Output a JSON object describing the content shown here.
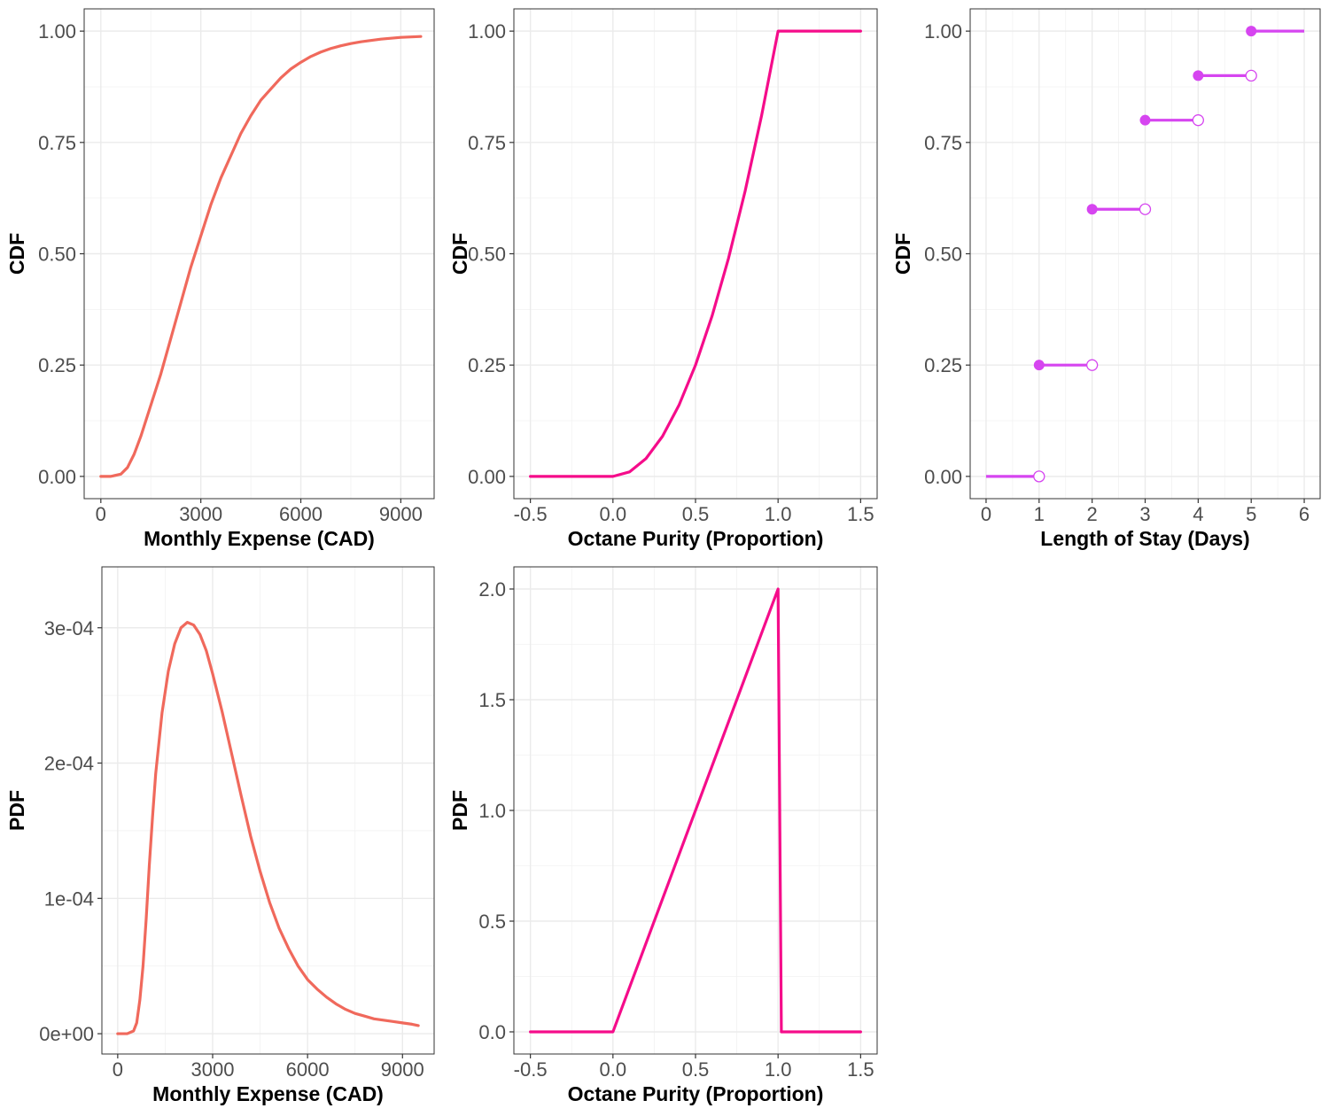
{
  "colors": {
    "gamma": "#F0695C",
    "triangular": "#F50C8A",
    "discrete": "#D645F0"
  },
  "chart_data": [
    {
      "id": "cdf-expense",
      "type": "line",
      "xlabel": "Monthly Expense (CAD)",
      "ylabel": "CDF",
      "xlim": [
        -500,
        10000
      ],
      "ylim": [
        -0.05,
        1.05
      ],
      "xticks": [
        0,
        3000,
        6000,
        9000
      ],
      "xtick_labels": [
        "0",
        "3000",
        "6000",
        "9000"
      ],
      "yticks": [
        0,
        0.25,
        0.5,
        0.75,
        1
      ],
      "ytick_labels": [
        "0.00",
        "0.25",
        "0.50",
        "0.75",
        "1.00"
      ],
      "color": "#F0695C",
      "x": [
        0,
        300,
        600,
        800,
        1000,
        1200,
        1500,
        1800,
        2100,
        2400,
        2700,
        3000,
        3300,
        3600,
        3900,
        4200,
        4500,
        4800,
        5100,
        5400,
        5700,
        6000,
        6300,
        6600,
        6900,
        7200,
        7500,
        7800,
        8100,
        8400,
        8700,
        9000,
        9300,
        9600
      ],
      "y": [
        0,
        0.0,
        0.005,
        0.02,
        0.05,
        0.09,
        0.16,
        0.23,
        0.31,
        0.39,
        0.47,
        0.54,
        0.61,
        0.67,
        0.72,
        0.77,
        0.81,
        0.845,
        0.87,
        0.895,
        0.915,
        0.93,
        0.943,
        0.953,
        0.961,
        0.967,
        0.972,
        0.976,
        0.979,
        0.982,
        0.984,
        0.986,
        0.987,
        0.988
      ]
    },
    {
      "id": "cdf-octane",
      "type": "line",
      "xlabel": "Octane Purity (Proportion)",
      "ylabel": "CDF",
      "xlim": [
        -0.6,
        1.6
      ],
      "ylim": [
        -0.05,
        1.05
      ],
      "xticks": [
        -0.5,
        0,
        0.5,
        1,
        1.5
      ],
      "xtick_labels": [
        "-0.5",
        "0.0",
        "0.5",
        "1.0",
        "1.5"
      ],
      "yticks": [
        0,
        0.25,
        0.5,
        0.75,
        1
      ],
      "ytick_labels": [
        "0.00",
        "0.25",
        "0.50",
        "0.75",
        "1.00"
      ],
      "color": "#F50C8A",
      "x": [
        -0.5,
        0,
        0.1,
        0.2,
        0.3,
        0.4,
        0.5,
        0.6,
        0.7,
        0.8,
        0.9,
        1,
        1.5
      ],
      "y": [
        0,
        0,
        0.01,
        0.04,
        0.09,
        0.16,
        0.25,
        0.36,
        0.49,
        0.64,
        0.81,
        1,
        1
      ]
    },
    {
      "id": "cdf-stay",
      "type": "scatter",
      "xlabel": "Length of Stay (Days)",
      "ylabel": "CDF",
      "xlim": [
        -0.3,
        6.3
      ],
      "ylim": [
        -0.05,
        1.05
      ],
      "xticks": [
        0,
        1,
        2,
        3,
        4,
        5,
        6
      ],
      "xtick_labels": [
        "0",
        "1",
        "2",
        "3",
        "4",
        "5",
        "6"
      ],
      "yticks": [
        0,
        0.25,
        0.5,
        0.75,
        1
      ],
      "ytick_labels": [
        "0.00",
        "0.25",
        "0.50",
        "0.75",
        "1.00"
      ],
      "color": "#D645F0",
      "steps": [
        {
          "x0": 0,
          "x1": 1,
          "y": 0,
          "closed_start": false
        },
        {
          "x0": 1,
          "x1": 2,
          "y": 0.25,
          "closed_start": true
        },
        {
          "x0": 2,
          "x1": 3,
          "y": 0.6,
          "closed_start": true
        },
        {
          "x0": 3,
          "x1": 4,
          "y": 0.8,
          "closed_start": true
        },
        {
          "x0": 4,
          "x1": 5,
          "y": 0.9,
          "closed_start": true
        },
        {
          "x0": 5,
          "x1": 6,
          "y": 1,
          "closed_start": true,
          "open_end": false
        }
      ]
    },
    {
      "id": "pdf-expense",
      "type": "line",
      "xlabel": "Monthly Expense (CAD)",
      "ylabel": "PDF",
      "xlim": [
        -500,
        10000
      ],
      "ylim": [
        -1.5e-05,
        0.000345
      ],
      "xticks": [
        0,
        3000,
        6000,
        9000
      ],
      "xtick_labels": [
        "0",
        "3000",
        "6000",
        "9000"
      ],
      "yticks": [
        0,
        0.0001,
        0.0002,
        0.0003
      ],
      "ytick_labels": [
        "0e+00",
        "1e-04",
        "2e-04",
        "3e-04"
      ],
      "color": "#F0695C",
      "x": [
        0,
        300,
        500,
        600,
        700,
        800,
        900,
        1000,
        1100,
        1200,
        1400,
        1600,
        1800,
        2000,
        2200,
        2400,
        2600,
        2800,
        3000,
        3300,
        3600,
        3900,
        4200,
        4500,
        4800,
        5100,
        5400,
        5700,
        6000,
        6300,
        6600,
        6900,
        7200,
        7500,
        7800,
        8100,
        8400,
        8700,
        9000,
        9300,
        9500
      ],
      "y": [
        0,
        0,
        2e-06,
        8e-06,
        2.5e-05,
        5e-05,
        8.5e-05,
        0.000125,
        0.00016,
        0.000192,
        0.000237,
        0.000268,
        0.000288,
        0.0003,
        0.000304,
        0.000302,
        0.000295,
        0.000283,
        0.000266,
        0.000238,
        0.000207,
        0.000176,
        0.000146,
        0.00012,
        9.7e-05,
        7.8e-05,
        6.3e-05,
        5e-05,
        4e-05,
        3.3e-05,
        2.7e-05,
        2.2e-05,
        1.8e-05,
        1.5e-05,
        1.3e-05,
        1.1e-05,
        1e-05,
        9e-06,
        8e-06,
        7e-06,
        6e-06
      ]
    },
    {
      "id": "pdf-octane",
      "type": "line",
      "xlabel": "Octane Purity (Proportion)",
      "ylabel": "PDF",
      "xlim": [
        -0.6,
        1.6
      ],
      "ylim": [
        -0.1,
        2.1
      ],
      "xticks": [
        -0.5,
        0,
        0.5,
        1,
        1.5
      ],
      "xtick_labels": [
        "-0.5",
        "0.0",
        "0.5",
        "1.0",
        "1.5"
      ],
      "yticks": [
        0,
        0.5,
        1,
        1.5,
        2
      ],
      "ytick_labels": [
        "0.0",
        "0.5",
        "1.0",
        "1.5",
        "2.0"
      ],
      "color": "#F50C8A",
      "x": [
        -0.5,
        0,
        1,
        1.02,
        1.5
      ],
      "y": [
        0,
        0,
        2,
        0,
        0
      ]
    }
  ]
}
